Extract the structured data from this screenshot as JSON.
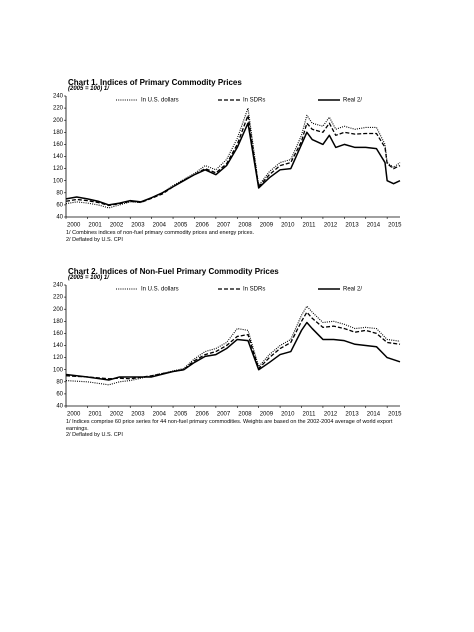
{
  "chart_data": [
    {
      "type": "line",
      "title": "Chart 1. Indices of Primary Commodity Prices",
      "subtitle": "(2005 = 100)  1/",
      "x": [
        2000,
        2000.5,
        2001,
        2001.5,
        2002,
        2002.5,
        2003,
        2003.5,
        2004,
        2004.5,
        2005,
        2005.5,
        2006,
        2006.5,
        2007,
        2007.5,
        2008,
        2008.5,
        2009,
        2009.5,
        2010,
        2010.5,
        2011,
        2011.25,
        2011.5,
        2012,
        2012.3,
        2012.6,
        2013,
        2013.5,
        2014,
        2014.5,
        2014.9,
        2015,
        2015.3,
        2015.6
      ],
      "series": [
        {
          "name": "In U.S. dollars",
          "color": "#000000",
          "style": "dotted",
          "values": [
            62,
            65,
            63,
            60,
            55,
            60,
            65,
            64,
            72,
            80,
            92,
            102,
            112,
            125,
            118,
            135,
            170,
            220,
            92,
            115,
            130,
            135,
            175,
            208,
            195,
            190,
            205,
            185,
            190,
            185,
            188,
            188,
            160,
            130,
            122,
            130
          ]
        },
        {
          "name": "In SDRs",
          "color": "#000000",
          "style": "dashed",
          "values": [
            66,
            69,
            67,
            64,
            59,
            62,
            66,
            64,
            71,
            78,
            90,
            101,
            110,
            120,
            113,
            128,
            160,
            208,
            90,
            110,
            125,
            130,
            165,
            195,
            185,
            180,
            195,
            175,
            180,
            177,
            178,
            178,
            155,
            128,
            120,
            125
          ]
        },
        {
          "name": "Real 2/",
          "color": "#000000",
          "style": "solid",
          "values": [
            70,
            73,
            70,
            66,
            60,
            63,
            67,
            65,
            72,
            80,
            90,
            100,
            110,
            118,
            110,
            125,
            155,
            195,
            88,
            105,
            118,
            120,
            160,
            180,
            168,
            160,
            175,
            155,
            160,
            155,
            155,
            153,
            130,
            100,
            95,
            100
          ]
        }
      ],
      "xlim": [
        2000,
        2015.6
      ],
      "xticks": [
        2000,
        2001,
        2002,
        2003,
        2004,
        2005,
        2006,
        2007,
        2008,
        2009,
        2010,
        2011,
        2012,
        2013,
        2014,
        2015
      ],
      "ylim": [
        40,
        240
      ],
      "yticks": [
        40,
        60,
        80,
        100,
        120,
        140,
        160,
        180,
        200,
        220,
        240
      ],
      "grid": false,
      "legend": "top",
      "notes": [
        "1/ Combines indices of non-fuel primary commodity prices and energy prices.",
        "2/ Deflated by U.S. CPI"
      ]
    },
    {
      "type": "line",
      "title": "Chart 2. Indices of Non-Fuel Primary Commodity Prices",
      "subtitle": "(2005 = 100)  1/",
      "x": [
        2000,
        2001,
        2002,
        2002.5,
        2003,
        2004,
        2005,
        2005.5,
        2006,
        2006.5,
        2007,
        2007.5,
        2008,
        2008.5,
        2009,
        2009.5,
        2010,
        2010.5,
        2011,
        2011.25,
        2011.5,
        2012,
        2012.5,
        2013,
        2013.5,
        2014,
        2014.5,
        2015,
        2015.6
      ],
      "series": [
        {
          "name": "In U.S. dollars",
          "color": "#000000",
          "style": "dotted",
          "values": [
            82,
            80,
            75,
            80,
            82,
            90,
            98,
            102,
            118,
            130,
            135,
            145,
            168,
            165,
            105,
            125,
            140,
            150,
            190,
            205,
            195,
            178,
            180,
            175,
            168,
            170,
            168,
            150,
            147
          ]
        },
        {
          "name": "In SDRs",
          "color": "#000000",
          "style": "dashed",
          "values": [
            90,
            88,
            85,
            86,
            85,
            90,
            97,
            100,
            115,
            125,
            130,
            140,
            155,
            158,
            102,
            120,
            135,
            145,
            180,
            195,
            185,
            170,
            172,
            168,
            162,
            165,
            160,
            145,
            142
          ]
        },
        {
          "name": "Real 2/",
          "color": "#000000",
          "style": "solid",
          "values": [
            92,
            88,
            83,
            88,
            88,
            88,
            97,
            100,
            112,
            122,
            125,
            135,
            150,
            148,
            100,
            112,
            125,
            130,
            165,
            178,
            168,
            150,
            150,
            148,
            142,
            140,
            138,
            120,
            113
          ]
        }
      ],
      "xlim": [
        2000,
        2015.6
      ],
      "xticks": [
        2000,
        2001,
        2002,
        2003,
        2004,
        2005,
        2006,
        2007,
        2008,
        2009,
        2010,
        2011,
        2012,
        2013,
        2014,
        2015
      ],
      "ylim": [
        40,
        240
      ],
      "yticks": [
        40,
        60,
        80,
        100,
        120,
        140,
        160,
        180,
        200,
        220,
        240
      ],
      "grid": false,
      "legend": "top",
      "notes": [
        "1/ Indices comprise 60 price series for 44 non-fuel primary commodities. Weights are based on the 2002-2004 average of world export earnings.",
        "2/ Deflated by U.S. CPI"
      ]
    }
  ]
}
